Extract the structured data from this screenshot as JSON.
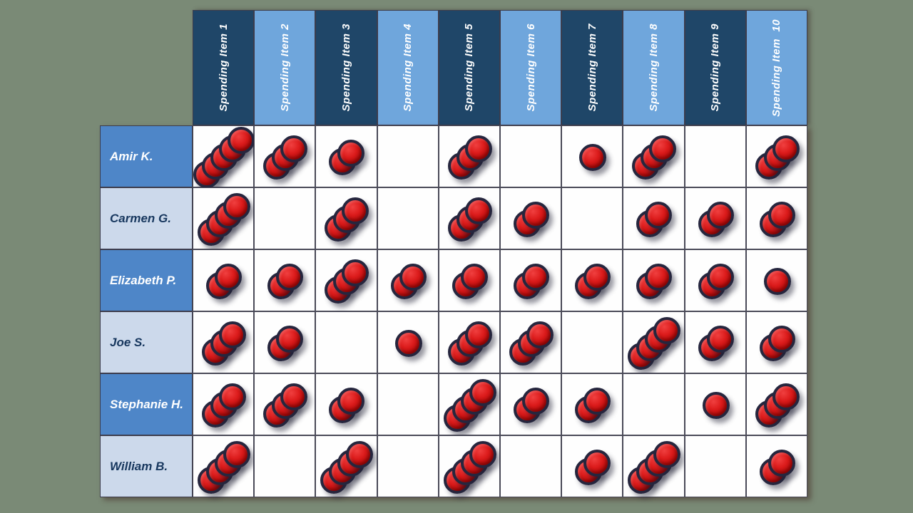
{
  "style": {
    "background_green": "#7a8a76",
    "header_dark_blue": "#1f4668",
    "header_light_blue": "#6fa6dc",
    "row_label_blue": "#4e86c8",
    "row_label_light": "#ccd9eb",
    "chip_red": "#c00000",
    "chip_ring": "#26263e",
    "grid_line": "#4a4a58"
  },
  "chart_data": {
    "type": "table",
    "title": "",
    "marker": "red-poker-chip-stack",
    "columns": [
      {
        "label": "Spending Item 1",
        "header_style": "dark"
      },
      {
        "label": "Spending Item 2",
        "header_style": "light"
      },
      {
        "label": "Spending Item 3",
        "header_style": "dark"
      },
      {
        "label": "Spending Item 4",
        "header_style": "light"
      },
      {
        "label": "Spending Item 5",
        "header_style": "dark"
      },
      {
        "label": "Spending Item 6",
        "header_style": "light"
      },
      {
        "label": "Spending Item 7",
        "header_style": "dark"
      },
      {
        "label": "Spending Item 8",
        "header_style": "light"
      },
      {
        "label": "Spending Item 9",
        "header_style": "dark"
      },
      {
        "label": "Spending Item  10",
        "header_style": "light"
      }
    ],
    "rows": [
      {
        "name": "Amir K.",
        "row_style": "blue",
        "votes": [
          5,
          3,
          2,
          0,
          3,
          0,
          1,
          3,
          0,
          3
        ]
      },
      {
        "name": "Carmen G.",
        "row_style": "light",
        "votes": [
          4,
          0,
          3,
          0,
          3,
          2,
          0,
          2,
          2,
          2
        ]
      },
      {
        "name": "Elizabeth P.",
        "row_style": "blue",
        "votes": [
          2,
          2,
          3,
          2,
          2,
          2,
          2,
          2,
          2,
          1
        ]
      },
      {
        "name": "Joe S.",
        "row_style": "light",
        "votes": [
          3,
          2,
          0,
          1,
          3,
          3,
          0,
          4,
          2,
          2
        ]
      },
      {
        "name": "Stephanie H.",
        "row_style": "blue",
        "votes": [
          3,
          3,
          2,
          0,
          4,
          2,
          2,
          0,
          1,
          3
        ]
      },
      {
        "name": "William B.",
        "row_style": "light",
        "votes": [
          4,
          0,
          4,
          0,
          4,
          0,
          2,
          4,
          0,
          2
        ]
      }
    ]
  }
}
